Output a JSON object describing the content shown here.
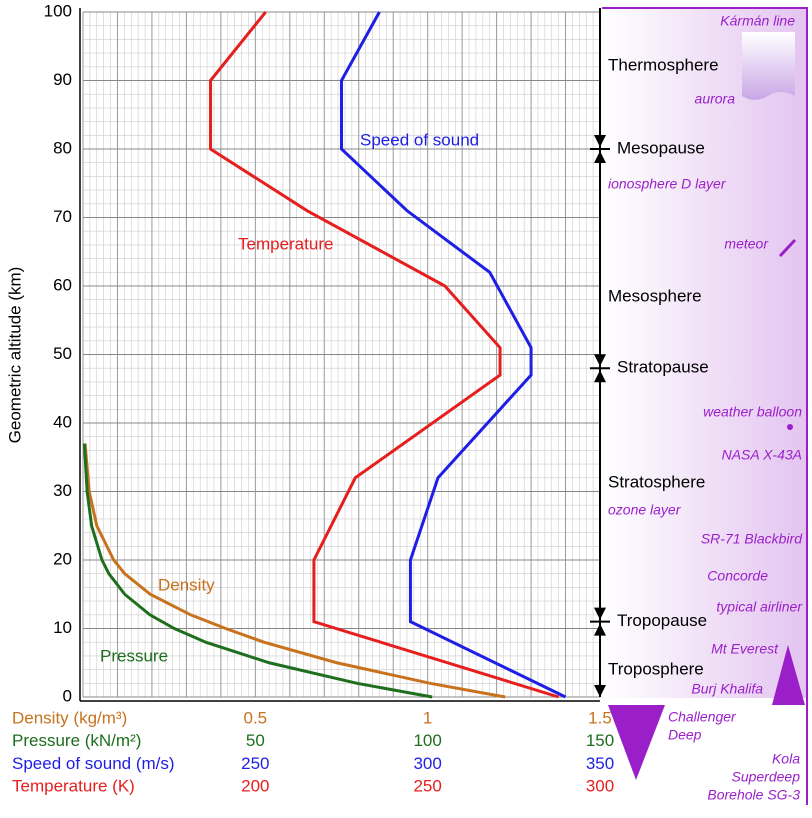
{
  "chart_data": {
    "type": "line",
    "y_label": "Geometric altitude (km)",
    "ylim": [
      0,
      100
    ],
    "yticks": [
      0,
      10,
      20,
      30,
      40,
      50,
      60,
      70,
      80,
      90,
      100
    ],
    "grid": true,
    "x_axes": [
      {
        "name": "Density (kg/m³)",
        "color": "#c8721e",
        "xlim": [
          0,
          1.5
        ],
        "xticks": [
          0.5,
          1,
          1.5
        ]
      },
      {
        "name": "Pressure (kN/m²)",
        "color": "#1e6e1e",
        "xlim": [
          0,
          150
        ],
        "xticks": [
          50,
          100,
          150
        ]
      },
      {
        "name": "Speed of sound (m/s)",
        "color": "#1e1ee6",
        "xlim": [
          200,
          350
        ],
        "xticks": [
          250,
          300,
          350
        ]
      },
      {
        "name": "Temperature (K)",
        "color": "#e61e1e",
        "xlim": [
          150,
          300
        ],
        "xticks": [
          200,
          250,
          300
        ]
      }
    ],
    "series": [
      {
        "name": "Density",
        "axis": 0,
        "color": "#c8721e",
        "altitude": [
          0,
          2,
          5,
          8,
          10,
          12,
          15,
          18,
          20,
          25,
          30,
          37
        ],
        "values": [
          1.225,
          1.007,
          0.736,
          0.525,
          0.414,
          0.312,
          0.195,
          0.121,
          0.089,
          0.04,
          0.018,
          0.006
        ]
      },
      {
        "name": "Pressure",
        "axis": 1,
        "color": "#1e6e1e",
        "altitude": [
          0,
          2,
          5,
          8,
          10,
          12,
          15,
          18,
          20,
          25,
          30,
          37
        ],
        "values": [
          101.3,
          79.5,
          54.0,
          35.6,
          26.5,
          19.4,
          12.1,
          7.5,
          5.5,
          2.5,
          1.2,
          0.4
        ]
      },
      {
        "name": "Speed of sound",
        "axis": 2,
        "color": "#1e1ee6",
        "altitude": [
          0,
          11,
          20,
          32,
          47,
          51,
          62,
          71,
          80,
          90,
          100
        ],
        "values": [
          340,
          295,
          295,
          303,
          330,
          330,
          318,
          294,
          275,
          275,
          286
        ]
      },
      {
        "name": "Temperature",
        "axis": 3,
        "color": "#e61e1e",
        "altitude": [
          0,
          11,
          20,
          32,
          47,
          51,
          60,
          71,
          80,
          90,
          100
        ],
        "values": [
          288,
          217,
          217,
          229,
          271,
          271,
          255,
          215,
          187,
          187,
          203
        ]
      }
    ],
    "layers": [
      "Thermosphere",
      "Mesosphere",
      "Stratosphere",
      "Troposphere"
    ],
    "boundaries": [
      {
        "label": "Mesopause",
        "altitude": 80
      },
      {
        "label": "Stratopause",
        "altitude": 48
      },
      {
        "label": "Tropopause",
        "altitude": 11
      }
    ],
    "annotations": [
      "Kármán line",
      "aurora",
      "ionosphere D layer",
      "meteor",
      "weather balloon",
      "NASA X-43A",
      "ozone layer",
      "SR-71 Blackbird",
      "Concorde",
      "typical airliner",
      "Mt Everest",
      "Burj Khalifa"
    ],
    "below_ground": [
      [
        "Challenger",
        "Deep"
      ],
      [
        "Kola",
        "Superdeep",
        "Borehole SG-3"
      ]
    ]
  }
}
